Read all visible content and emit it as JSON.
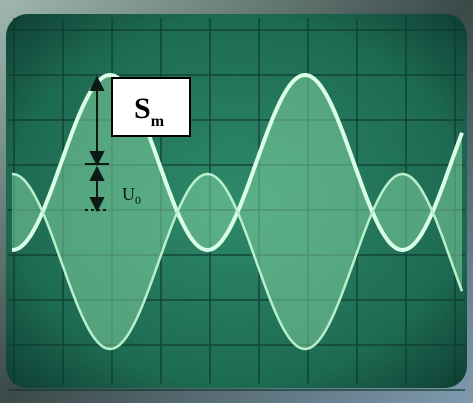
{
  "labels": {
    "sm": {
      "main": "S",
      "sub": "m"
    },
    "u0": {
      "main": "U",
      "sub": "0"
    }
  }
}
